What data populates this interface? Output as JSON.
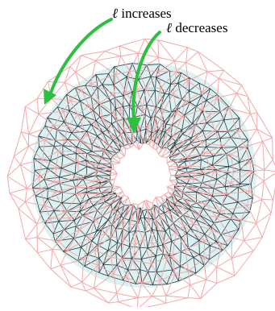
{
  "labels": {
    "ell_symbol": "ℓ",
    "increases": "increases",
    "decreases": "decreases"
  },
  "colors": {
    "outer_mesh": "#f2a9a9",
    "inner_mesh": "#2c3a40",
    "inner_fill": "#dcf1f2",
    "arrow": "#2dbf3f"
  }
}
